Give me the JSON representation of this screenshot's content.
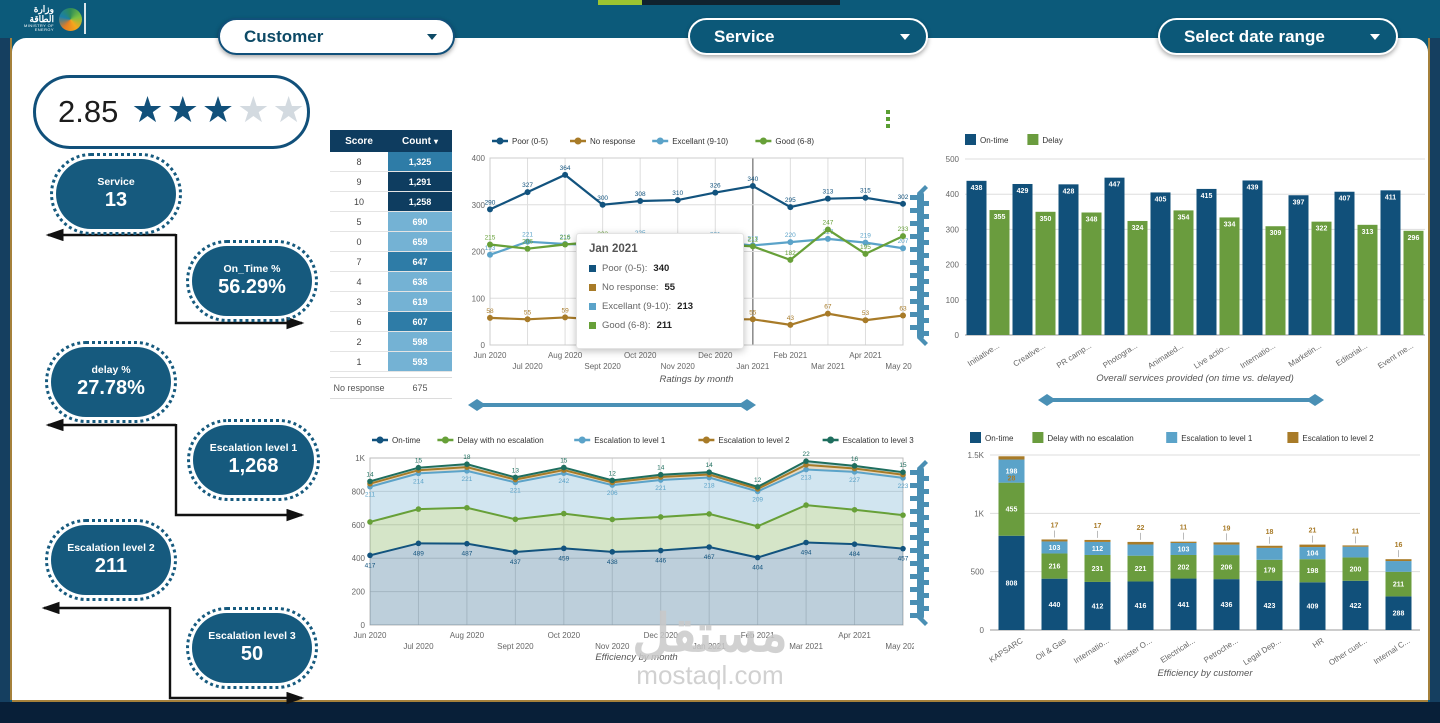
{
  "header": {
    "logo": {
      "title_ar": "وزارة الطاقة",
      "subtitle_en": "MINISTRY OF ENERGY"
    },
    "filters": [
      {
        "id": "customer",
        "label": "Customer"
      },
      {
        "id": "service",
        "label": "Service"
      },
      {
        "id": "date_range",
        "label": "Select date range"
      }
    ]
  },
  "rating": {
    "value": "2.85",
    "stars_filled": 3,
    "stars_total": 5
  },
  "kpis": [
    {
      "label": "Service",
      "value": "13"
    },
    {
      "label": "On_Time %",
      "value": "56.29%"
    },
    {
      "label": "delay %",
      "value": "27.78%"
    },
    {
      "label": "Escalation level 1",
      "value": "1,268"
    },
    {
      "label": "Escalation level 2",
      "value": "211"
    },
    {
      "label": "Escalation level 3",
      "value": "50"
    }
  ],
  "score_table": {
    "columns": [
      "Score",
      "Count"
    ],
    "rows": [
      {
        "score": "8",
        "count": "1,325",
        "shade": "medium"
      },
      {
        "score": "9",
        "count": "1,291",
        "shade": "dark"
      },
      {
        "score": "10",
        "count": "1,258",
        "shade": "dark"
      },
      {
        "score": "5",
        "count": "690",
        "shade": "light"
      },
      {
        "score": "0",
        "count": "659",
        "shade": "light"
      },
      {
        "score": "7",
        "count": "647",
        "shade": "medium"
      },
      {
        "score": "4",
        "count": "636",
        "shade": "light"
      },
      {
        "score": "3",
        "count": "619",
        "shade": "light"
      },
      {
        "score": "6",
        "count": "607",
        "shade": "medium"
      },
      {
        "score": "2",
        "count": "598",
        "shade": "light"
      },
      {
        "score": "1",
        "count": "593",
        "shade": "light"
      }
    ],
    "footer": {
      "score": "No response",
      "count": "675"
    }
  },
  "tooltip": {
    "title": "Jan 2021",
    "items": [
      {
        "label": "Poor (0-5)",
        "value": "340",
        "color": "#12537e"
      },
      {
        "label": "No response",
        "value": "55",
        "color": "#a87b28"
      },
      {
        "label": "Excellant (9-10)",
        "value": "213",
        "color": "#5ba3c9"
      },
      {
        "label": "Good (6-8)",
        "value": "211",
        "color": "#67a038"
      }
    ]
  },
  "watermark": {
    "arabic": "مستقل",
    "domain": "mostaql.com"
  },
  "icons": {
    "chevron_down": "▾",
    "kebab_menu": "⋮",
    "sort_desc": "▾",
    "star": "★"
  },
  "colors": {
    "header_teal": "#0c5a7a",
    "kpi_teal": "#165a7e",
    "navy": "#11507a",
    "green": "#6a9c3e",
    "light_blue": "#5ba3c9",
    "tan": "#a87b28",
    "dark_teal_green": "#1e6e5e",
    "edge_navy": "#153f60",
    "bottom_navy": "#081f38",
    "gold": "#a5813b"
  },
  "chart_data": [
    {
      "id": "ratings_by_month",
      "type": "line",
      "title": "Ratings by month",
      "x": [
        "Jun 2020",
        "Jul 2020",
        "Aug 2020",
        "Sept 2020",
        "Oct 2020",
        "Nov 2020",
        "Dec 2020",
        "Jan 2021",
        "Feb 2021",
        "Mar 2021",
        "Apr 2021",
        "May 2021"
      ],
      "ylim": [
        0,
        400
      ],
      "yticks": [
        0,
        100,
        200,
        300,
        400
      ],
      "highlight_x": "Jan 2021",
      "legend_position": "top",
      "grid": true,
      "series": [
        {
          "name": "Poor (0-5)",
          "color": "#12537e",
          "values": [
            290,
            327,
            364,
            300,
            308,
            310,
            326,
            340,
            295,
            313,
            315,
            302
          ]
        },
        {
          "name": "No response",
          "color": "#a87b28",
          "values": [
            58,
            55,
            59,
            54,
            56,
            52,
            55,
            55,
            43,
            67,
            53,
            63
          ]
        },
        {
          "name": "Excellant (9-10)",
          "color": "#5ba3c9",
          "values": [
            193,
            221,
            216,
            214,
            225,
            218,
            221,
            213,
            220,
            227,
            219,
            207
          ]
        },
        {
          "name": "Good (6-8)",
          "color": "#67a038",
          "values": [
            215,
            206,
            215,
            222,
            208,
            212,
            216,
            211,
            182,
            247,
            195,
            233
          ]
        }
      ]
    },
    {
      "id": "services_on_time_vs_delayed",
      "type": "bar",
      "title": "Overall services provided (on time vs. delayed)",
      "categories": [
        "Initiative...",
        "Creative...",
        "PR camp...",
        "Photogra...",
        "Animated...",
        "Live actio...",
        "Internatio...",
        "Marketin...",
        "Editorial...",
        "Event me..."
      ],
      "ylim": [
        0,
        500
      ],
      "yticks": [
        0,
        100,
        200,
        300,
        400,
        500
      ],
      "legend_position": "top",
      "series": [
        {
          "name": "On-time",
          "color": "#11507a",
          "values": [
            438,
            429,
            428,
            447,
            405,
            415,
            439,
            397,
            407,
            411
          ]
        },
        {
          "name": "Delay",
          "color": "#6a9c3e",
          "values": [
            355,
            350,
            348,
            324,
            354,
            334,
            309,
            322,
            313,
            296
          ]
        }
      ]
    },
    {
      "id": "efficiency_by_month",
      "type": "area",
      "title": "Efficiency by month",
      "stacked": true,
      "x": [
        "Jun 2020",
        "Jul 2020",
        "Aug 2020",
        "Sept 2020",
        "Oct 2020",
        "Nov 2020",
        "Dec 2020",
        "Jan 2021",
        "Feb 2021",
        "Mar 2021",
        "Apr 2021",
        "May 2021"
      ],
      "ylim": [
        0,
        1000
      ],
      "ytick_values": [
        0,
        200,
        400,
        600,
        800,
        1000
      ],
      "ytick_labels": [
        "0",
        "200",
        "400",
        "600",
        "800",
        "1K"
      ],
      "legend_position": "top",
      "series": [
        {
          "name": "On-time",
          "color": "#12537e",
          "values": [
            417,
            489,
            487,
            437,
            459,
            438,
            446,
            467,
            404,
            494,
            484,
            457
          ]
        },
        {
          "name": "Delay with no escalation",
          "color": "#67a038",
          "values": [
            200,
            205,
            215,
            196,
            208,
            194,
            201,
            198,
            187,
            224,
            206,
            201
          ]
        },
        {
          "name": "Escalation to level 1",
          "color": "#5ba3c9",
          "values": [
            211,
            214,
            221,
            221,
            242,
            206,
            221,
            218,
            209,
            213,
            227,
            223
          ]
        },
        {
          "name": "Escalation to level 2",
          "color": "#a87b28",
          "values": [
            18,
            19,
            22,
            17,
            19,
            16,
            18,
            18,
            15,
            28,
            20,
            19
          ]
        },
        {
          "name": "Escalation to level 3",
          "color": "#1e6e5e",
          "values": [
            14,
            15,
            18,
            13,
            15,
            12,
            14,
            14,
            12,
            22,
            16,
            15
          ]
        }
      ]
    },
    {
      "id": "efficiency_by_customer",
      "type": "bar_stacked",
      "title": "Efficiency by customer",
      "categories": [
        "KAPSARC",
        "Oil & Gas",
        "Internatio...",
        "Minister O...",
        "Electrical...",
        "Petroche...",
        "Legal Dep...",
        "HR",
        "Other cust...",
        "Internal C..."
      ],
      "ylim": [
        0,
        1500
      ],
      "ytick_values": [
        0,
        500,
        1000,
        1500
      ],
      "ytick_labels": [
        "0",
        "500",
        "1K",
        "1.5K"
      ],
      "legend_position": "top",
      "series": [
        {
          "name": "On-time",
          "color": "#11507a",
          "values": [
            808,
            440,
            412,
            416,
            441,
            436,
            423,
            409,
            422,
            288
          ]
        },
        {
          "name": "Delay with no escalation",
          "color": "#6a9c3e",
          "values": [
            455,
            216,
            231,
            221,
            202,
            206,
            179,
            198,
            200,
            211
          ]
        },
        {
          "name": "Escalation to level 1",
          "color": "#5ba3c9",
          "values": [
            198,
            103,
            112,
            96,
            103,
            90,
            102,
            104,
            92,
            92
          ]
        },
        {
          "name": "Escalation to level 2",
          "color": "#a87b28",
          "values": [
            28,
            17,
            17,
            22,
            11,
            19,
            18,
            21,
            11,
            16
          ]
        }
      ]
    }
  ]
}
